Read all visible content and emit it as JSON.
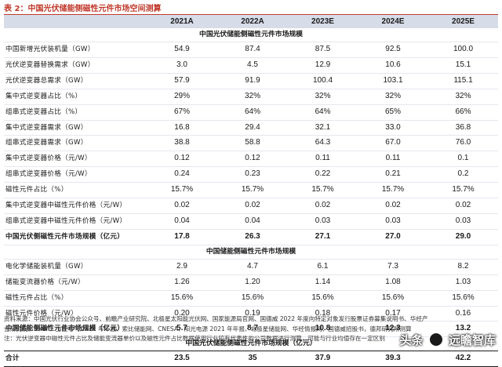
{
  "title": "表 2：中国光伏储能侧磁性元件市场空间测算",
  "header": [
    "",
    "2021A",
    "2022A",
    "2023E",
    "2024E",
    "2025E"
  ],
  "sections": [
    {
      "heading": "中国光伏储能侧磁性元件市场规模",
      "rows": [
        {
          "label": "中国新增光伏装机量（GW）",
          "values": [
            "54.9",
            "87.4",
            "87.5",
            "92.5",
            "100.0"
          ],
          "bold": false
        },
        {
          "label": "光伏逆变器替换需求（GW）",
          "values": [
            "3.0",
            "4.5",
            "12.9",
            "10.6",
            "15.1"
          ],
          "bold": false
        },
        {
          "label": "光伏逆变器总需求（GW）",
          "values": [
            "57.9",
            "91.9",
            "100.4",
            "103.1",
            "115.1"
          ],
          "bold": false
        },
        {
          "label": "集中式逆变器占比（%）",
          "values": [
            "29%",
            "32%",
            "32%",
            "32%",
            "32%"
          ],
          "bold": false
        },
        {
          "label": "组串式逆变器占比（%）",
          "values": [
            "67%",
            "64%",
            "64%",
            "65%",
            "66%"
          ],
          "bold": false
        },
        {
          "label": "集中式逆变器需求（GW）",
          "values": [
            "16.8",
            "29.4",
            "32.1",
            "33.0",
            "36.8"
          ],
          "bold": false
        },
        {
          "label": "组串式逆变器需求（GW）",
          "values": [
            "38.8",
            "58.8",
            "64.3",
            "67.0",
            "76.0"
          ],
          "bold": false
        },
        {
          "label": "集中式逆变器价格（元/W）",
          "values": [
            "0.12",
            "0.12",
            "0.11",
            "0.11",
            "0.1"
          ],
          "bold": false
        },
        {
          "label": "组串式逆变器价格（元/W）",
          "values": [
            "0.24",
            "0.23",
            "0.22",
            "0.21",
            "0.2"
          ],
          "bold": false
        },
        {
          "label": "磁性元件占比（%）",
          "values": [
            "15.7%",
            "15.7%",
            "15.7%",
            "15.7%",
            "15.7%"
          ],
          "bold": false
        },
        {
          "label": "集中式逆变器中磁性元件价格（元/W）",
          "values": [
            "0.02",
            "0.02",
            "0.02",
            "0.02",
            "0.02"
          ],
          "bold": false
        },
        {
          "label": "组串式逆变器中磁性元件价格（元/W）",
          "values": [
            "0.04",
            "0.04",
            "0.03",
            "0.03",
            "0.03"
          ],
          "bold": false
        },
        {
          "label": "中国光伏侧磁性元件市场规模（亿元）",
          "values": [
            "17.8",
            "26.3",
            "27.1",
            "27.0",
            "29.0"
          ],
          "bold": true
        }
      ]
    },
    {
      "heading": "中国储能侧磁性元件市场规模",
      "rows": [
        {
          "label": "电化学储能装机量（GW）",
          "values": [
            "2.9",
            "4.7",
            "6.1",
            "7.3",
            "8.2"
          ],
          "bold": false
        },
        {
          "label": "储能变流器价格（元/W）",
          "values": [
            "1.26",
            "1.20",
            "1.14",
            "1.08",
            "1.03"
          ],
          "bold": false
        },
        {
          "label": "磁性元件占比（%）",
          "values": [
            "15.6%",
            "15.6%",
            "15.6%",
            "15.6%",
            "15.6%"
          ],
          "bold": false
        },
        {
          "label": "磁性元件价格（元/W）",
          "values": [
            "0.20",
            "0.19",
            "0.18",
            "0.17",
            "0.16"
          ],
          "bold": false
        },
        {
          "label": "中国储能侧磁性元件市场规模（亿元）",
          "values": [
            "5.7",
            "8.7",
            "10.8",
            "12.3",
            "13.2"
          ],
          "bold": true
        }
      ]
    },
    {
      "heading": "中国光伏储能侧磁性元件市场规模（亿元）",
      "rows": [
        {
          "label": "合计",
          "values": [
            "23.5",
            "35",
            "37.9",
            "39.3",
            "42.2"
          ],
          "bold": true,
          "total": true
        }
      ]
    }
  ],
  "notes": [
    "资料来源：中国光伏行业协会公众号、前瞻产业研究院、北极星太阳能光伏网、国家能源局官网、国德威 2022 年度向特定对象发行股票证券募集说明书、华经产",
    "业研究院、BNEF、上能电气 2021 年年报、索比储能网、CNESA、阳光电源 2021 年年报、北极星储能网、华经情报网、国德威招股书，德邦研究所测算",
    "注：光伏逆变器中磁性元件占比及储能变流器单价以及磁性元件占比数据使用行业较有代表性的公司数据进行测算，可能与行业均值存在一定区别"
  ],
  "watermark": {
    "prefix": "头条",
    "brand": "远瞻智库"
  },
  "colors": {
    "title": "#c0392b",
    "header_bg": "#d6dce8"
  }
}
